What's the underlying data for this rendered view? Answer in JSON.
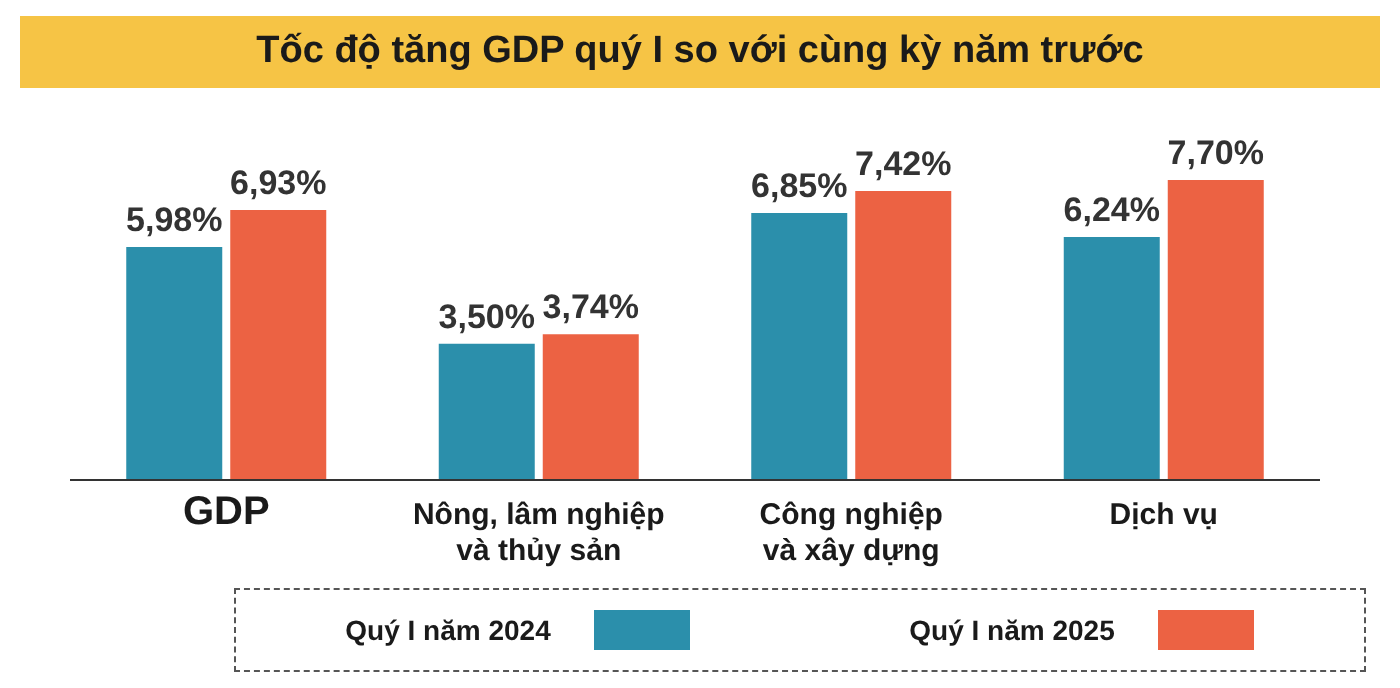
{
  "chart_data": {
    "type": "bar",
    "title": "Tốc độ tăng GDP quý I so với cùng kỳ năm trước",
    "categories": [
      "GDP",
      "Nông, lâm nghiệp\nvà thủy sản",
      "Công nghiệp\nvà xây dựng",
      "Dịch vụ"
    ],
    "series": [
      {
        "name": "Quý I năm 2024",
        "color": "#2b8fab",
        "values": [
          5.98,
          3.5,
          6.85,
          6.24
        ],
        "value_labels": [
          "5,98%",
          "3,50%",
          "6,85%",
          "6,24%"
        ]
      },
      {
        "name": "Quý I năm 2025",
        "color": "#ec6243",
        "values": [
          6.93,
          3.74,
          7.42,
          7.7
        ],
        "value_labels": [
          "6,93%",
          "3,74%",
          "7,42%",
          "7,70%"
        ]
      }
    ],
    "legend": "bottom",
    "grid": false
  }
}
